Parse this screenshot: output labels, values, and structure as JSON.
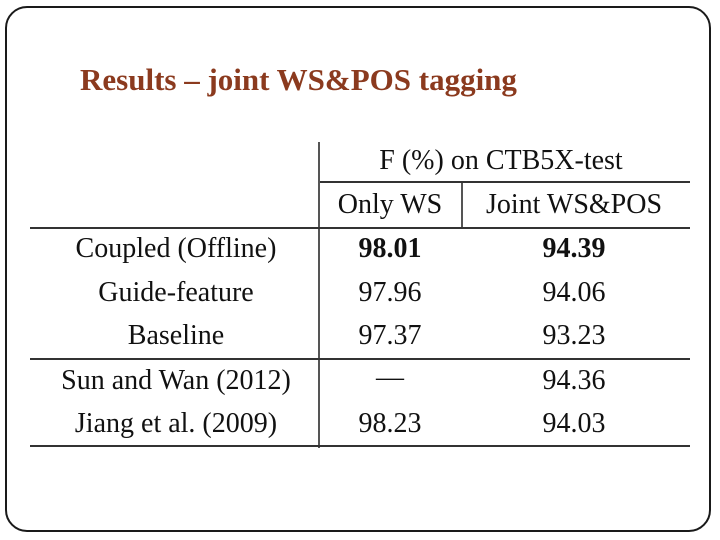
{
  "slide": {
    "title": "Results – joint WS&POS tagging"
  },
  "table": {
    "group_header": "F (%) on CTB5X-test",
    "column_headers": [
      "Only WS",
      "Joint WS&POS"
    ],
    "rows": [
      {
        "method": "Coupled (Offline)",
        "only_ws": "98.01",
        "joint": "94.39",
        "bold": true
      },
      {
        "method": "Guide-feature",
        "only_ws": "97.96",
        "joint": "94.06",
        "bold": false
      },
      {
        "method": "Baseline",
        "only_ws": "97.37",
        "joint": "93.23",
        "bold": false
      },
      {
        "method": "Sun and Wan (2012)",
        "only_ws": "—",
        "joint": "94.36",
        "bold": false
      },
      {
        "method": "Jiang et al. (2009)",
        "only_ws": "98.23",
        "joint": "94.03",
        "bold": false
      }
    ]
  },
  "colors": {
    "title": "#8B3A1E",
    "text": "#111111",
    "frame": "#1a1a1a"
  }
}
